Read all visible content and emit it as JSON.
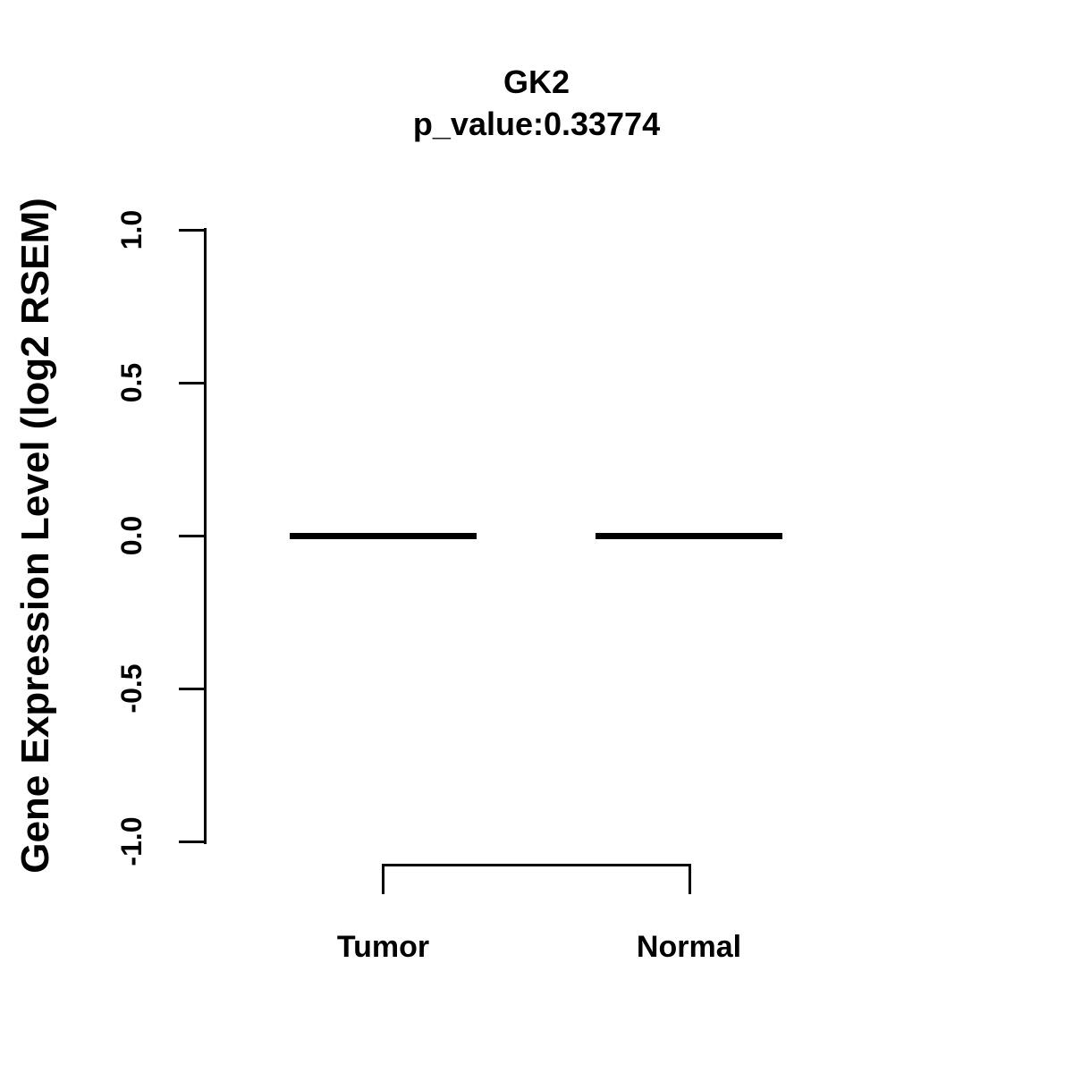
{
  "figure": {
    "background_color": "#ffffff",
    "foreground_color": "#000000"
  },
  "title": {
    "line1": "GK2",
    "line2": "p_value:0.33774"
  },
  "y_axis": {
    "label": "Gene Expression Level (log2 RSEM)",
    "tick_labels": [
      "1.0",
      "0.5",
      "0.0",
      "-0.5",
      "-1.0"
    ]
  },
  "x_axis": {
    "labels": [
      "Tumor",
      "Normal"
    ]
  },
  "chart_data": {
    "type": "boxplot",
    "title": "GK2",
    "subtitle": "p_value:0.33774",
    "p_value": 0.33774,
    "gene": "GK2",
    "xlabel": "",
    "ylabel": "Gene Expression Level (log2 RSEM)",
    "ylim": [
      -1.0,
      1.0
    ],
    "yticks": [
      1.0,
      0.5,
      0.0,
      -0.5,
      -1.0
    ],
    "categories": [
      "Tumor",
      "Normal"
    ],
    "groups": [
      {
        "label": "Tumor",
        "median": 0.0,
        "q1": 0.0,
        "q3": 0.0,
        "whisker_low": 0.0,
        "whisker_high": 0.0
      },
      {
        "label": "Normal",
        "median": 0.0,
        "q1": 0.0,
        "q3": 0.0,
        "whisker_low": 0.0,
        "whisker_high": 0.0
      }
    ],
    "grid": false,
    "legend_position": "none",
    "annotations": [
      {
        "type": "comparison-bracket",
        "between": [
          "Tumor",
          "Normal"
        ],
        "label": ""
      }
    ],
    "colors": {
      "box": "#000000",
      "text": "#000000",
      "background": "#ffffff"
    }
  }
}
